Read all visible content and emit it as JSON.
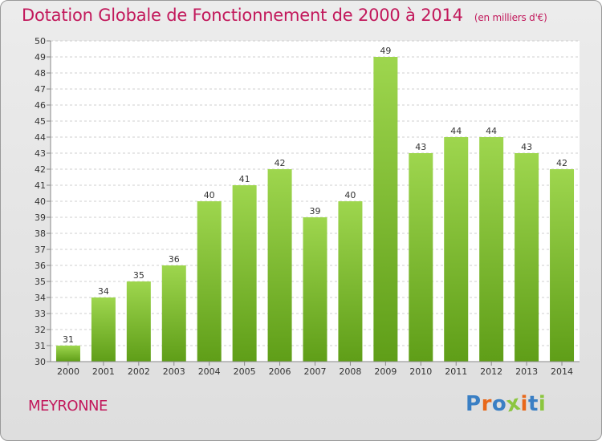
{
  "chart_data": {
    "type": "bar",
    "title": "Dotation Globale de Fonctionnement de 2000 à 2014",
    "subtitle": "(en milliers d'€)",
    "categories": [
      "2000",
      "2001",
      "2002",
      "2003",
      "2004",
      "2005",
      "2006",
      "2007",
      "2008",
      "2009",
      "2010",
      "2011",
      "2012",
      "2013",
      "2014"
    ],
    "values": [
      31,
      34,
      35,
      36,
      40,
      41,
      42,
      39,
      40,
      49,
      43,
      44,
      44,
      43,
      42
    ],
    "ylim": [
      30,
      50
    ],
    "yticks": [
      "30",
      "31",
      "32",
      "33",
      "34",
      "35",
      "36",
      "37",
      "38",
      "39",
      "40",
      "41",
      "42",
      "43",
      "44",
      "45",
      "46",
      "47",
      "48",
      "49",
      "50"
    ],
    "grid": "horizontal dashed",
    "bar_color": "#7cbf2e"
  },
  "commune": "MEYRONNE",
  "logo": {
    "text": "Proxiti",
    "letter_colors": [
      "#3a7fc4",
      "#e8681a",
      "#3a7fc4",
      "#8cc63f",
      "#e8681a",
      "#3a7fc4",
      "#8cc63f"
    ]
  }
}
